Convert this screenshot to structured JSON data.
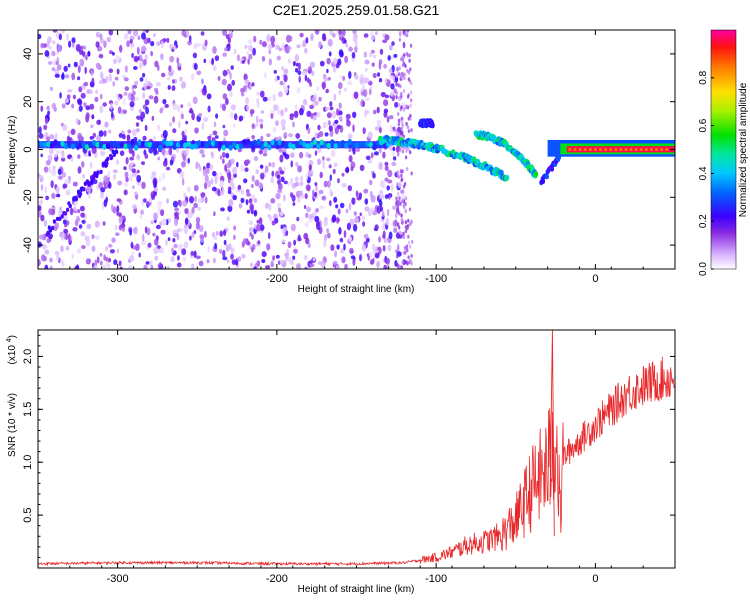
{
  "title": "C2E1.2025.259.01.58.G21",
  "colors": {
    "snr_line": "#e8282a",
    "axis": "#000000"
  },
  "chart_data": [
    {
      "type": "heatmap",
      "title": "C2E1.2025.259.01.58.G21",
      "xlabel": "Height of straight line (km)",
      "ylabel": "Frequency (Hz)",
      "xlim": [
        -350,
        50
      ],
      "ylim": [
        -50,
        50
      ],
      "xticks": [
        -300,
        -200,
        -100,
        0
      ],
      "yticks": [
        -40,
        -20,
        0,
        20,
        40
      ],
      "colorbar": {
        "label": "Normalized spectral amplitude",
        "range": [
          0,
          1
        ],
        "ticks": [
          "0.0",
          "0.2",
          "0.4",
          "0.6",
          "0.8"
        ]
      },
      "features": [
        {
          "name": "main_track",
          "x": [
            -350,
            -140
          ],
          "freq_hz": 2,
          "amplitude": 0.3
        },
        {
          "name": "descending_branch_1",
          "x": [
            -120,
            -60
          ],
          "freq_hz": [
            4,
            -10
          ],
          "amplitude": 0.4
        },
        {
          "name": "descending_branch_2",
          "x": [
            -75,
            -35
          ],
          "freq_hz": [
            5,
            -12
          ],
          "amplitude": 0.4
        },
        {
          "name": "strong_line",
          "x": [
            -20,
            50
          ],
          "freq_hz": 0,
          "amplitude": 0.95
        }
      ]
    },
    {
      "type": "line",
      "xlabel": "Height of straight line (km)",
      "ylabel": "SNR (10 * v/v)",
      "y_scale_label": "(x10^4)",
      "y_scale_text": "(x10",
      "y_scale_exp": "4",
      "xlim": [
        -350,
        50
      ],
      "ylim": [
        0,
        2.25
      ],
      "xticks": [
        -300,
        -200,
        -100,
        0
      ],
      "yticks": [
        "0.5",
        "1.0",
        "1.5",
        "2.0"
      ],
      "series": [
        {
          "name": "SNR",
          "x": [
            -350,
            -300,
            -250,
            -200,
            -150,
            -120,
            -100,
            -90,
            -80,
            -70,
            -60,
            -50,
            -40,
            -30,
            -25,
            -22,
            -20,
            -10,
            0,
            10,
            20,
            30,
            40,
            50
          ],
          "y": [
            0.04,
            0.05,
            0.05,
            0.04,
            0.04,
            0.05,
            0.1,
            0.15,
            0.22,
            0.25,
            0.3,
            0.45,
            0.75,
            0.95,
            1.3,
            0.5,
            1.05,
            1.2,
            1.35,
            1.5,
            1.65,
            1.72,
            1.78,
            1.8
          ]
        }
      ],
      "spike": {
        "x": -27,
        "y": 2.25
      }
    }
  ]
}
